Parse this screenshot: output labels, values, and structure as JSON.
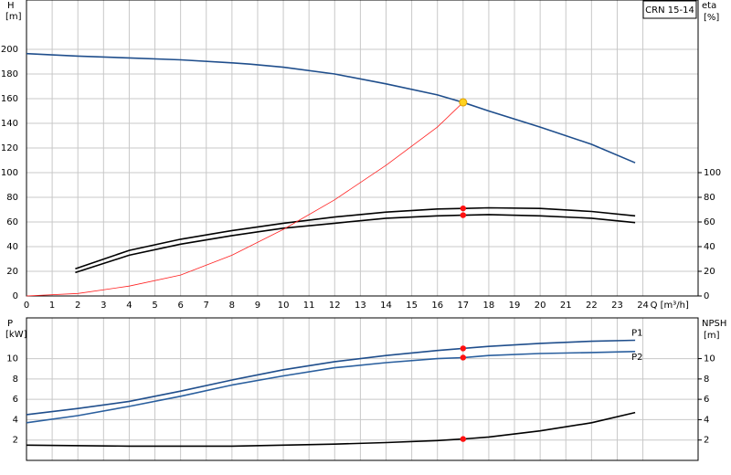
{
  "chart_data": [
    {
      "type": "line",
      "title": "CRN 15-14",
      "y_label": "H",
      "y_unit": "[m]",
      "y2_label": "eta",
      "y2_unit": "[%]",
      "x_label": "Q [m³/h]",
      "xlim": [
        0,
        26.15
      ],
      "xticks": [
        0,
        1,
        2,
        3,
        4,
        5,
        6,
        7,
        8,
        9,
        10,
        11,
        12,
        13,
        14,
        15,
        16,
        17,
        18,
        19,
        20,
        21,
        22,
        23,
        24
      ],
      "ylim": [
        0,
        240
      ],
      "yticks": [
        0,
        20,
        40,
        60,
        80,
        100,
        120,
        140,
        160,
        180,
        200
      ],
      "y2lim": [
        0,
        240
      ],
      "y2ticks": [
        0,
        20,
        40,
        60,
        80,
        100
      ],
      "grid": true,
      "series": [
        {
          "color": "#1f4e8c",
          "x": [
            0,
            2,
            4,
            6,
            8,
            8.7,
            10,
            12,
            14,
            16,
            17,
            18,
            20,
            22,
            23.7
          ],
          "values": [
            196.5,
            194.5,
            193,
            191.5,
            189,
            188,
            185.5,
            180,
            172,
            163,
            157,
            150,
            137,
            123,
            108
          ]
        },
        {
          "color": "#000000",
          "axis": "y2",
          "x": [
            1.9,
            4,
            6,
            8,
            10,
            12,
            14,
            16,
            17,
            18,
            20,
            22,
            23.7
          ],
          "values": [
            22,
            37,
            46,
            53,
            59,
            64,
            68,
            70.5,
            71,
            71.5,
            71,
            68.5,
            65
          ]
        },
        {
          "color": "#000000",
          "axis": "y2",
          "x": [
            1.9,
            4,
            6,
            8,
            10,
            12,
            14,
            16,
            17,
            18,
            20,
            22,
            23.7
          ],
          "values": [
            19,
            33,
            42,
            49,
            55,
            59,
            63,
            65,
            65.5,
            66,
            65,
            63,
            59.5
          ]
        },
        {
          "color": "#ff2020",
          "x": [
            0,
            2,
            4,
            6,
            8,
            10,
            12,
            14,
            16,
            17
          ],
          "values": [
            0,
            2,
            8,
            17,
            33,
            54,
            78,
            106,
            137,
            157
          ]
        }
      ],
      "points": [
        {
          "x": 17,
          "y": 157,
          "color": "#ffd21f"
        },
        {
          "x": 17,
          "y": 71,
          "color": "#ff1010"
        },
        {
          "x": 17,
          "y": 65.5,
          "color": "#ff1010"
        }
      ]
    },
    {
      "type": "line",
      "y_label": "P",
      "y_unit": "[kW]",
      "y2_label": "NPSH",
      "y2_unit": "[m]",
      "xlim": [
        0,
        26.15
      ],
      "xticks": [
        0,
        1,
        2,
        3,
        4,
        5,
        6,
        7,
        8,
        9,
        10,
        11,
        12,
        13,
        14,
        15,
        16,
        17,
        18,
        19,
        20,
        21,
        22,
        23,
        24
      ],
      "ylim": [
        0,
        14
      ],
      "yticks": [
        2,
        4,
        6,
        8,
        10
      ],
      "y2lim": [
        0,
        14
      ],
      "y2ticks": [
        2,
        4,
        6,
        8,
        10
      ],
      "grid": true,
      "series": [
        {
          "name": "P1",
          "color": "#1f4e8c",
          "x": [
            0,
            2,
            4,
            6,
            8,
            10,
            12,
            14,
            16,
            17,
            18,
            20,
            22,
            23.7
          ],
          "values": [
            4.5,
            5.1,
            5.8,
            6.8,
            7.9,
            8.9,
            9.7,
            10.3,
            10.8,
            11.0,
            11.2,
            11.5,
            11.7,
            11.8
          ]
        },
        {
          "name": "P2",
          "color": "#2a5f9e",
          "x": [
            0,
            2,
            4,
            6,
            8,
            10,
            12,
            14,
            16,
            17,
            18,
            20,
            22,
            23.7
          ],
          "values": [
            3.7,
            4.4,
            5.3,
            6.3,
            7.4,
            8.3,
            9.1,
            9.6,
            10.0,
            10.1,
            10.3,
            10.5,
            10.6,
            10.7
          ]
        },
        {
          "color": "#000000",
          "axis": "y2",
          "x": [
            0,
            4,
            8,
            10,
            12,
            14,
            16,
            17,
            18,
            20,
            22,
            23.7
          ],
          "values": [
            1.5,
            1.4,
            1.4,
            1.5,
            1.6,
            1.75,
            1.95,
            2.1,
            2.3,
            2.9,
            3.7,
            4.7
          ]
        }
      ],
      "points": [
        {
          "x": 17,
          "y": 11.0,
          "color": "#ff1010"
        },
        {
          "x": 17,
          "y": 10.1,
          "color": "#ff1010"
        },
        {
          "x": 17,
          "y": 2.1,
          "color": "#ff1010"
        }
      ]
    }
  ]
}
